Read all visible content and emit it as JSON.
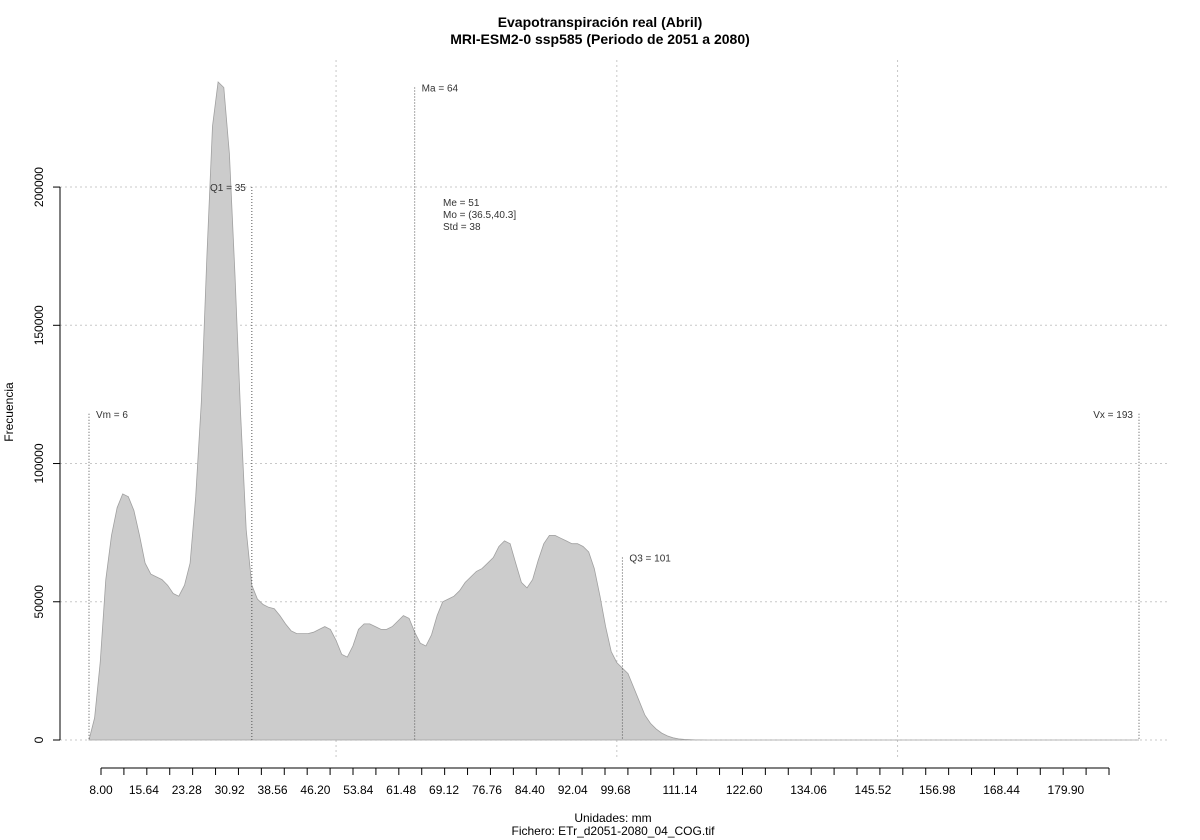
{
  "chart_data": {
    "type": "area",
    "title": "Evapotranspiración real (Abril)",
    "subtitle": "MRI-ESM2-0 ssp585 (Periodo de 2051 a 2080)",
    "xlabel": "Unidades: mm",
    "ylabel": "Frecuencia",
    "footer": "Fichero: ETr_d2051-2080_04_COG.tif",
    "xlim": [
      6,
      193
    ],
    "ylim": [
      0,
      238000
    ],
    "x_ticks": [
      "8.00",
      "15.64",
      "23.28",
      "30.92",
      "38.56",
      "46.20",
      "53.84",
      "61.48",
      "69.12",
      "76.76",
      "84.40",
      "92.04",
      "99.68",
      "111.14",
      "122.60",
      "134.06",
      "145.52",
      "156.98",
      "168.44",
      "179.90"
    ],
    "x_tick_values": [
      8.0,
      15.64,
      23.28,
      30.92,
      38.56,
      46.2,
      53.84,
      61.48,
      69.12,
      76.76,
      84.4,
      92.04,
      99.68,
      111.14,
      122.6,
      134.06,
      145.52,
      156.98,
      168.44,
      179.9
    ],
    "y_ticks": [
      0,
      50000,
      100000,
      150000,
      200000
    ],
    "y_tick_labels": [
      "0",
      "50000",
      "100000",
      "150000",
      "200000"
    ],
    "grid": true,
    "fill_color": "#cccccc",
    "series": [
      {
        "x": [
          6,
          7,
          8,
          9,
          10,
          11,
          12,
          13,
          14,
          15,
          16,
          17,
          18,
          19,
          20,
          21,
          22,
          23,
          24,
          25,
          26,
          27,
          28,
          29,
          30,
          31,
          32,
          33,
          34,
          35,
          36,
          37,
          38,
          39,
          40,
          41,
          42,
          43,
          44,
          45,
          46,
          47,
          48,
          49,
          50,
          51,
          52,
          53,
          54,
          55,
          56,
          57,
          58,
          59,
          60,
          61,
          62,
          63,
          64,
          65,
          66,
          67,
          68,
          69,
          70,
          71,
          72,
          73,
          74,
          75,
          76,
          77,
          78,
          79,
          80,
          81,
          82,
          83,
          84,
          85,
          86,
          87,
          88,
          89,
          90,
          91,
          92,
          93,
          94,
          95,
          96,
          97,
          98,
          99,
          100,
          101,
          102,
          103,
          104,
          105,
          106,
          107,
          108,
          109,
          110,
          111,
          112,
          113,
          114,
          115,
          116,
          117,
          118,
          119,
          120,
          121,
          122,
          123,
          124,
          125,
          126,
          127,
          128,
          129,
          130,
          131,
          132,
          133,
          134,
          135,
          136,
          137,
          138,
          139,
          140,
          141,
          142,
          143,
          144,
          145,
          146,
          147,
          148,
          150,
          155,
          160,
          165,
          170,
          175,
          180,
          185,
          190,
          193
        ],
        "y": [
          0,
          8000,
          28000,
          58000,
          74000,
          84000,
          89000,
          88000,
          83000,
          74000,
          64000,
          60000,
          59000,
          58000,
          56000,
          53000,
          52000,
          56000,
          64000,
          88000,
          122000,
          175000,
          222000,
          238000,
          236000,
          212000,
          168000,
          118000,
          76000,
          56000,
          51000,
          49000,
          48000,
          47500,
          45000,
          42000,
          39500,
          38500,
          38500,
          38500,
          39000,
          40000,
          41000,
          40000,
          36000,
          31000,
          30000,
          34000,
          40000,
          42000,
          42000,
          41000,
          40000,
          40000,
          41000,
          43000,
          45000,
          44000,
          39000,
          35000,
          34000,
          38000,
          45000,
          50000,
          51000,
          52000,
          54000,
          57000,
          59000,
          61000,
          62000,
          64000,
          66000,
          70000,
          72000,
          71000,
          64000,
          57000,
          55000,
          58000,
          65000,
          71000,
          74000,
          74000,
          73000,
          72000,
          71000,
          71000,
          70000,
          68000,
          62000,
          52000,
          41000,
          32000,
          28000,
          26000,
          24000,
          19000,
          14000,
          9000,
          6000,
          4000,
          2500,
          1500,
          800,
          400,
          200,
          100,
          50,
          20,
          5,
          0,
          0,
          0,
          0,
          0,
          0,
          0,
          0,
          0,
          0,
          0,
          0,
          0,
          0,
          0,
          0,
          0,
          0,
          0,
          0,
          0,
          0,
          0,
          0,
          0,
          0,
          0,
          0,
          0,
          0,
          0,
          0,
          0,
          0,
          0,
          0,
          0,
          0,
          0,
          0,
          0,
          0
        ]
      }
    ],
    "vlines": [
      {
        "x": 6,
        "label": "Vm = 6",
        "height": 118000,
        "label_side": "right"
      },
      {
        "x": 35,
        "label": "Q1 = 35",
        "height": 200000,
        "label_side": "left"
      },
      {
        "x": 64,
        "label": "Ma = 64",
        "height": 236000,
        "label_side": "right"
      },
      {
        "x": 101,
        "label": "Q3 = 101",
        "height": 66000,
        "label_side": "right"
      },
      {
        "x": 193,
        "label": "Vx = 193",
        "height": 118000,
        "label_side": "left"
      }
    ],
    "stats": [
      "Me = 51",
      "Mo = (36.5,40.3]",
      "Std = 38"
    ]
  }
}
